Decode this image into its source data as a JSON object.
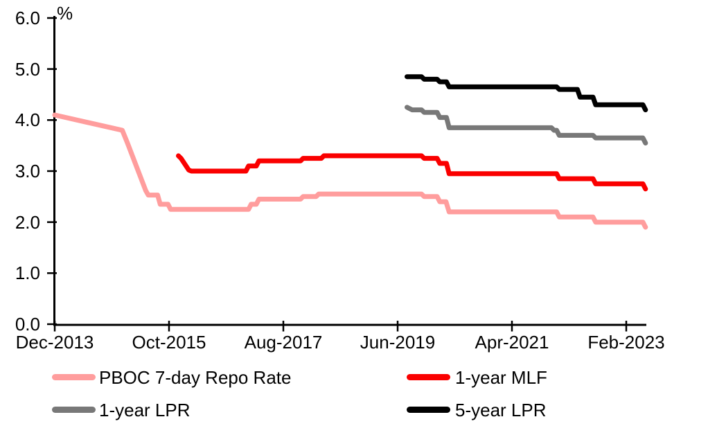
{
  "chart_data": {
    "type": "line",
    "title": "",
    "unit_label": "%",
    "xlabel": "",
    "ylabel": "%",
    "ylim": [
      0.0,
      6.0
    ],
    "ytick_step": 1.0,
    "y_ticks": [
      "6.0",
      "5.0",
      "4.0",
      "3.0",
      "2.0",
      "1.0",
      "0.0"
    ],
    "x_ticks": [
      "Dec-2013",
      "Oct-2015",
      "Aug-2017",
      "Jun-2019",
      "Apr-2021",
      "Feb-2023"
    ],
    "x_tick_months": [
      0,
      22,
      44,
      66,
      88,
      110
    ],
    "x_range": [
      "Dec-2013",
      "Jun-2023"
    ],
    "grid": false,
    "background": "#FFFFFF",
    "axis_color": "#000000",
    "legend_position": "bottom-two-column",
    "series": [
      {
        "id": "pboc-7d-repo",
        "name": "PBOC 7-day Repo Rate",
        "color": "#FF9D9D",
        "line_width": 7,
        "points": [
          [
            0,
            4.1
          ],
          [
            13,
            3.8
          ],
          [
            14,
            3.55
          ],
          [
            17.5,
            2.62
          ],
          [
            18,
            2.53
          ],
          [
            19.8,
            2.53
          ],
          [
            20.3,
            2.35
          ],
          [
            21.8,
            2.35
          ],
          [
            22.3,
            2.25
          ],
          [
            37.3,
            2.25
          ],
          [
            37.8,
            2.35
          ],
          [
            38.8,
            2.35
          ],
          [
            39.3,
            2.45
          ],
          [
            47.3,
            2.45
          ],
          [
            47.8,
            2.5
          ],
          [
            50.3,
            2.5
          ],
          [
            50.8,
            2.55
          ],
          [
            70.6,
            2.55
          ],
          [
            71.1,
            2.5
          ],
          [
            73.6,
            2.5
          ],
          [
            74.1,
            2.4
          ],
          [
            75.3,
            2.4
          ],
          [
            75.9,
            2.2
          ],
          [
            96.6,
            2.2
          ],
          [
            97.1,
            2.1
          ],
          [
            103.6,
            2.1
          ],
          [
            104.1,
            2.0
          ],
          [
            113.2,
            2.0
          ],
          [
            113.7,
            1.9
          ]
        ]
      },
      {
        "id": "mlf-1y",
        "name": "1-year MLF",
        "color": "#FA0000",
        "line_width": 7,
        "points": [
          [
            23.8,
            3.3
          ],
          [
            24.3,
            3.25
          ],
          [
            25.8,
            3.02
          ],
          [
            26.3,
            3.0
          ],
          [
            36.8,
            3.0
          ],
          [
            37.3,
            3.1
          ],
          [
            38.8,
            3.1
          ],
          [
            39.3,
            3.2
          ],
          [
            47.3,
            3.2
          ],
          [
            47.8,
            3.25
          ],
          [
            51.3,
            3.25
          ],
          [
            51.8,
            3.3
          ],
          [
            70.6,
            3.3
          ],
          [
            71.1,
            3.25
          ],
          [
            73.6,
            3.25
          ],
          [
            74.1,
            3.15
          ],
          [
            75.4,
            3.15
          ],
          [
            75.9,
            2.95
          ],
          [
            96.6,
            2.95
          ],
          [
            97.1,
            2.85
          ],
          [
            103.6,
            2.85
          ],
          [
            104.1,
            2.75
          ],
          [
            113.2,
            2.75
          ],
          [
            113.7,
            2.65
          ]
        ]
      },
      {
        "id": "lpr-1y",
        "name": "1-year LPR",
        "color": "#787878",
        "line_width": 7,
        "points": [
          [
            67.8,
            4.25
          ],
          [
            68.8,
            4.2
          ],
          [
            70.6,
            4.2
          ],
          [
            71.1,
            4.15
          ],
          [
            73.6,
            4.15
          ],
          [
            74.1,
            4.05
          ],
          [
            75.4,
            4.05
          ],
          [
            75.9,
            3.85
          ],
          [
            95.6,
            3.85
          ],
          [
            96.1,
            3.8
          ],
          [
            96.6,
            3.8
          ],
          [
            97.1,
            3.7
          ],
          [
            103.6,
            3.7
          ],
          [
            104.1,
            3.65
          ],
          [
            113.2,
            3.65
          ],
          [
            113.7,
            3.55
          ]
        ]
      },
      {
        "id": "lpr-5y",
        "name": "5-year LPR",
        "color": "#000000",
        "line_width": 7,
        "points": [
          [
            67.8,
            4.85
          ],
          [
            70.6,
            4.85
          ],
          [
            71.1,
            4.8
          ],
          [
            73.6,
            4.8
          ],
          [
            74.1,
            4.75
          ],
          [
            75.4,
            4.75
          ],
          [
            75.9,
            4.65
          ],
          [
            96.6,
            4.65
          ],
          [
            97.1,
            4.6
          ],
          [
            100.6,
            4.6
          ],
          [
            101.1,
            4.45
          ],
          [
            103.6,
            4.45
          ],
          [
            104.1,
            4.3
          ],
          [
            113.2,
            4.3
          ],
          [
            113.7,
            4.2
          ]
        ]
      }
    ]
  }
}
